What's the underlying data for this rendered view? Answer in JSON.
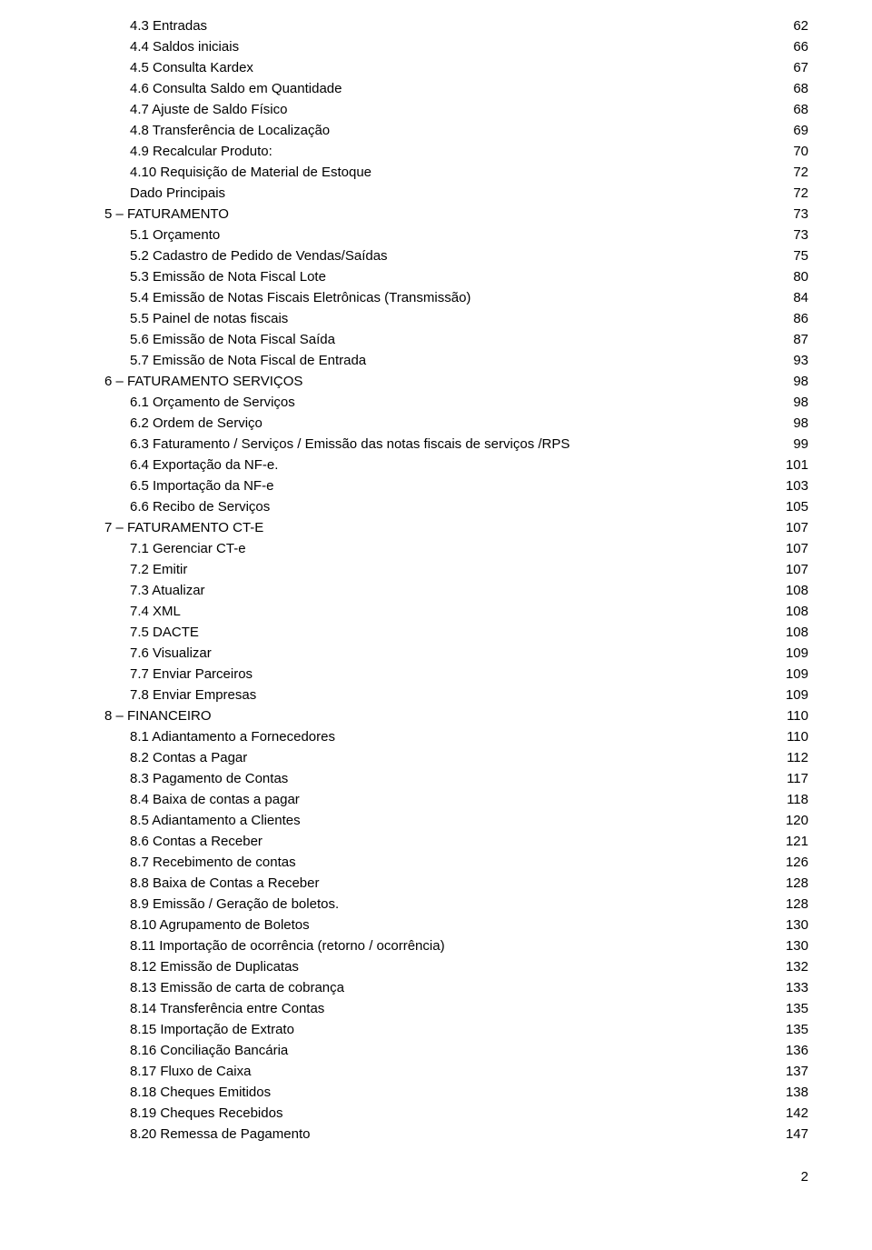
{
  "entries": [
    {
      "level": 1,
      "title": "4.3 Entradas",
      "page": "62"
    },
    {
      "level": 1,
      "title": "4.4 Saldos iniciais",
      "page": "66"
    },
    {
      "level": 1,
      "title": "4.5 Consulta Kardex",
      "page": "67"
    },
    {
      "level": 1,
      "title": "4.6 Consulta Saldo em Quantidade",
      "page": "68"
    },
    {
      "level": 1,
      "title": "4.7 Ajuste de Saldo Físico",
      "page": "68"
    },
    {
      "level": 1,
      "title": "4.8 Transferência de Localização",
      "page": "69"
    },
    {
      "level": 1,
      "title": "4.9 Recalcular Produto:",
      "page": "70"
    },
    {
      "level": 1,
      "title": "4.10 Requisição de Material de Estoque",
      "page": "72"
    },
    {
      "level": 1,
      "title": "Dado Principais",
      "page": "72"
    },
    {
      "level": 0,
      "title": "5 – FATURAMENTO",
      "page": "73"
    },
    {
      "level": 1,
      "title": "5.1 Orçamento",
      "page": "73"
    },
    {
      "level": 1,
      "title": "5.2 Cadastro de Pedido de Vendas/Saídas",
      "page": "75"
    },
    {
      "level": 1,
      "title": "5.3 Emissão de Nota Fiscal Lote",
      "page": "80"
    },
    {
      "level": 1,
      "title": "5.4 Emissão de Notas Fiscais Eletrônicas (Transmissão)",
      "page": "84"
    },
    {
      "level": 1,
      "title": "5.5 Painel de notas fiscais",
      "page": "86"
    },
    {
      "level": 1,
      "title": "5.6 Emissão de Nota Fiscal Saída",
      "page": "87"
    },
    {
      "level": 1,
      "title": "5.7 Emissão de Nota Fiscal de Entrada",
      "page": "93"
    },
    {
      "level": 0,
      "title": "6 – FATURAMENTO SERVIÇOS",
      "page": "98"
    },
    {
      "level": 1,
      "title": "6.1 Orçamento de Serviços",
      "page": "98"
    },
    {
      "level": 1,
      "title": "6.2 Ordem de Serviço",
      "page": "98"
    },
    {
      "level": 1,
      "title": "6.3 Faturamento / Serviços / Emissão das notas fiscais de serviços /RPS",
      "page": "99"
    },
    {
      "level": 1,
      "title": "6.4 Exportação da NF-e.",
      "page": "101"
    },
    {
      "level": 1,
      "title": "6.5 Importação da NF-e",
      "page": "103"
    },
    {
      "level": 1,
      "title": "6.6 Recibo de Serviços",
      "page": "105"
    },
    {
      "level": 0,
      "title": "7 – FATURAMENTO CT-E",
      "page": "107"
    },
    {
      "level": 1,
      "title": "7.1 Gerenciar CT-e",
      "page": "107"
    },
    {
      "level": 1,
      "title": "7.2 Emitir",
      "page": "107"
    },
    {
      "level": 1,
      "title": "7.3 Atualizar",
      "page": "108"
    },
    {
      "level": 1,
      "title": "7.4 XML",
      "page": "108"
    },
    {
      "level": 1,
      "title": "7.5 DACTE",
      "page": "108"
    },
    {
      "level": 1,
      "title": "7.6 Visualizar",
      "page": "109"
    },
    {
      "level": 1,
      "title": "7.7 Enviar Parceiros",
      "page": "109"
    },
    {
      "level": 1,
      "title": "7.8 Enviar Empresas",
      "page": "109"
    },
    {
      "level": 0,
      "title": "8 – FINANCEIRO",
      "page": "110"
    },
    {
      "level": 1,
      "title": "8.1 Adiantamento a Fornecedores",
      "page": "110"
    },
    {
      "level": 1,
      "title": "8.2 Contas a Pagar",
      "page": "112"
    },
    {
      "level": 1,
      "title": "8.3 Pagamento de Contas",
      "page": "117"
    },
    {
      "level": 1,
      "title": "8.4 Baixa de contas a pagar",
      "page": "118"
    },
    {
      "level": 1,
      "title": "8.5 Adiantamento a Clientes",
      "page": "120"
    },
    {
      "level": 1,
      "title": "8.6 Contas a Receber",
      "page": "121"
    },
    {
      "level": 1,
      "title": "8.7 Recebimento de contas",
      "page": "126"
    },
    {
      "level": 1,
      "title": "8.8 Baixa de Contas a Receber",
      "page": "128"
    },
    {
      "level": 1,
      "title": "8.9 Emissão / Geração de boletos.",
      "page": "128"
    },
    {
      "level": 1,
      "title": "8.10 Agrupamento de Boletos",
      "page": "130"
    },
    {
      "level": 1,
      "title": "8.11 Importação de ocorrência (retorno / ocorrência)",
      "page": "130"
    },
    {
      "level": 1,
      "title": "8.12 Emissão de Duplicatas",
      "page": "132"
    },
    {
      "level": 1,
      "title": "8.13 Emissão de carta de cobrança",
      "page": "133"
    },
    {
      "level": 1,
      "title": "8.14 Transferência entre Contas",
      "page": "135"
    },
    {
      "level": 1,
      "title": "8.15 Importação de Extrato",
      "page": "135"
    },
    {
      "level": 1,
      "title": "8.16 Conciliação Bancária",
      "page": "136"
    },
    {
      "level": 1,
      "title": "8.17 Fluxo de Caixa",
      "page": "137"
    },
    {
      "level": 1,
      "title": "8.18 Cheques Emitidos",
      "page": "138"
    },
    {
      "level": 1,
      "title": "8.19 Cheques Recebidos",
      "page": "142"
    },
    {
      "level": 1,
      "title": "8.20 Remessa de Pagamento",
      "page": "147"
    }
  ],
  "page_number": "2"
}
